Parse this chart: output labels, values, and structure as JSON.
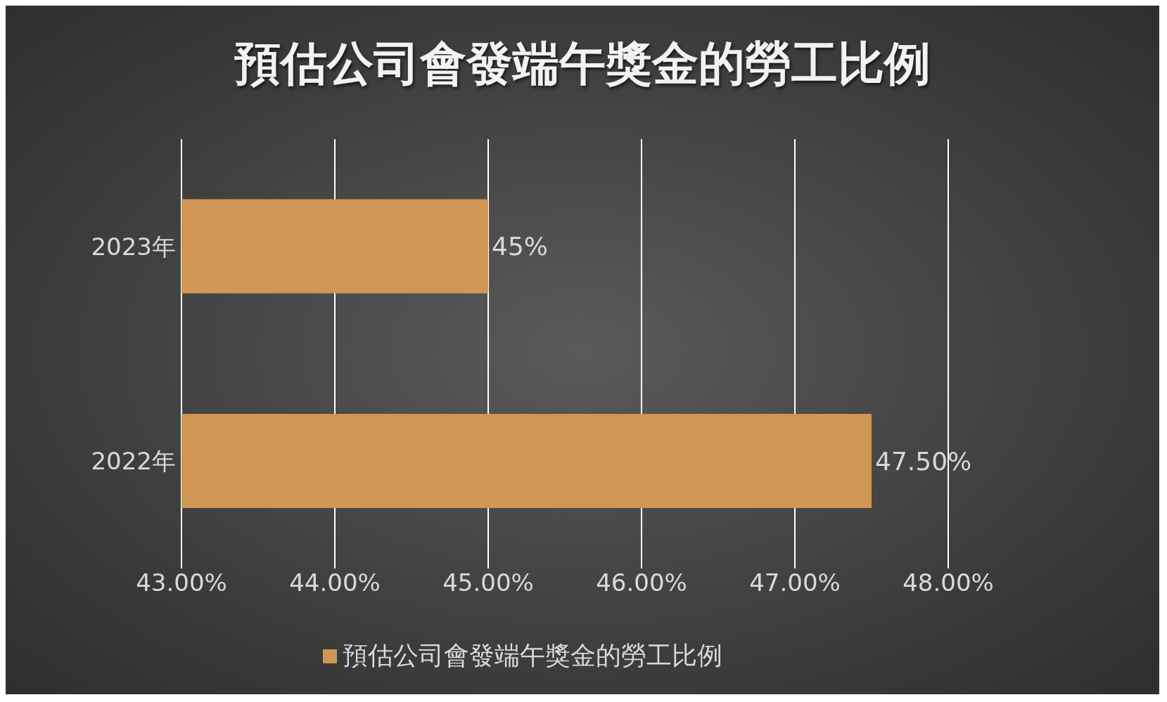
{
  "chart_data": {
    "type": "bar",
    "title": "預估公司會發端午獎金的勞工比例",
    "orientation": "horizontal",
    "categories": [
      "2023年",
      "2022年"
    ],
    "series": [
      {
        "name": "預估公司會發端午獎金的勞工比例",
        "color": "#d09655",
        "values": [
          45,
          47.5
        ],
        "value_labels": [
          "45%",
          "47.50%"
        ]
      }
    ],
    "xlim": [
      43,
      48
    ],
    "xticks": [
      {
        "value": 43,
        "label": "43.00%"
      },
      {
        "value": 44,
        "label": "44.00%"
      },
      {
        "value": 45,
        "label": "45.00%"
      },
      {
        "value": 46,
        "label": "46.00%"
      },
      {
        "value": 47,
        "label": "47.00%"
      },
      {
        "value": 48,
        "label": "48.00%"
      }
    ],
    "grid": "x",
    "legend": "bottom"
  }
}
